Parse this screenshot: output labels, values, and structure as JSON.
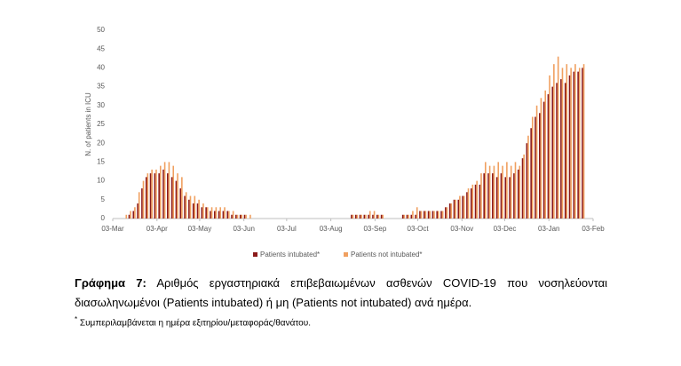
{
  "chart_data": {
    "type": "bar",
    "y_label": "N. of patients in ICU",
    "x": [
      0,
      3,
      6,
      9,
      12,
      15,
      18,
      21,
      24,
      27,
      30,
      33,
      36,
      39,
      42,
      45,
      48,
      51,
      54,
      57,
      60,
      63,
      66,
      69,
      72,
      75,
      78,
      81,
      84,
      87,
      90,
      93,
      96,
      99,
      102,
      105,
      108,
      111,
      114,
      117,
      120,
      123,
      126,
      129,
      132,
      135,
      138,
      141,
      144,
      147,
      150,
      153,
      156,
      159,
      162,
      165,
      168,
      171,
      174,
      177,
      180,
      183,
      186,
      189,
      192,
      195,
      198,
      201,
      204,
      207,
      210,
      213,
      216,
      219,
      222,
      225,
      228,
      231,
      234,
      237,
      240,
      243,
      246,
      249,
      252,
      255,
      258,
      261,
      264,
      267,
      270,
      273,
      276,
      279,
      282,
      285,
      288,
      291,
      294,
      297,
      300,
      303,
      306,
      309,
      312,
      315,
      318,
      321,
      324,
      327,
      330
    ],
    "series": [
      {
        "name": "Patients intubated*",
        "color": "#8b1a1a",
        "values": [
          0,
          0,
          0,
          0,
          1,
          2,
          4,
          8,
          11,
          12,
          12,
          12,
          13,
          12,
          11,
          10,
          8,
          6,
          5,
          4,
          4,
          3,
          3,
          2,
          2,
          2,
          2,
          2,
          1,
          1,
          1,
          1,
          0,
          0,
          0,
          0,
          0,
          0,
          0,
          0,
          0,
          0,
          0,
          0,
          0,
          0,
          0,
          0,
          0,
          0,
          0,
          0,
          0,
          0,
          0,
          0,
          1,
          1,
          1,
          1,
          1,
          1,
          1,
          1,
          0,
          0,
          0,
          0,
          1,
          1,
          1,
          1,
          2,
          2,
          2,
          2,
          2,
          2,
          3,
          4,
          5,
          5,
          6,
          7,
          8,
          9,
          9,
          12,
          12,
          12,
          11,
          12,
          11,
          11,
          12,
          13,
          16,
          20,
          24,
          27,
          28,
          31,
          33,
          35,
          36,
          37,
          36,
          38,
          39,
          39,
          40
        ]
      },
      {
        "name": "Patients not intubated*",
        "color": "#f0a060",
        "values": [
          0,
          0,
          0,
          1,
          2,
          3,
          7,
          10,
          12,
          13,
          13,
          14,
          15,
          15,
          14,
          12,
          11,
          7,
          6,
          6,
          5,
          4,
          3,
          3,
          3,
          3,
          3,
          2,
          2,
          1,
          1,
          1,
          1,
          0,
          0,
          0,
          0,
          0,
          0,
          0,
          0,
          0,
          0,
          0,
          0,
          0,
          0,
          0,
          0,
          0,
          0,
          0,
          0,
          0,
          0,
          0,
          1,
          1,
          1,
          1,
          2,
          2,
          1,
          1,
          0,
          0,
          0,
          0,
          1,
          1,
          2,
          3,
          2,
          2,
          2,
          2,
          2,
          2,
          3,
          4,
          5,
          6,
          6,
          8,
          9,
          10,
          12,
          15,
          14,
          14,
          15,
          14,
          15,
          14,
          15,
          14,
          17,
          22,
          27,
          30,
          32,
          34,
          38,
          41,
          43,
          40,
          41,
          40,
          41,
          40,
          41
        ]
      }
    ],
    "xlim": [
      0,
      337
    ],
    "xticks": [
      {
        "value": 0,
        "label": "03-Mar"
      },
      {
        "value": 31,
        "label": "03-Apr"
      },
      {
        "value": 61,
        "label": "03-May"
      },
      {
        "value": 92,
        "label": "03-Jun"
      },
      {
        "value": 122,
        "label": "03-Jul"
      },
      {
        "value": 153,
        "label": "03-Aug"
      },
      {
        "value": 184,
        "label": "03-Sep"
      },
      {
        "value": 214,
        "label": "03-Oct"
      },
      {
        "value": 245,
        "label": "03-Nov"
      },
      {
        "value": 275,
        "label": "03-Dec"
      },
      {
        "value": 306,
        "label": "03-Jan"
      },
      {
        "value": 337,
        "label": "03-Feb"
      }
    ],
    "ylim": [
      0,
      50
    ],
    "yticks": [
      0,
      5,
      10,
      15,
      20,
      25,
      30,
      35,
      40,
      45,
      50
    ],
    "grid": false,
    "legend": "bottom"
  },
  "caption": {
    "label": "Γράφημα 7:",
    "text": "Αριθμός εργαστηριακά επιβεβαιωμένων ασθενών COVID-19 που νοσηλεύονται διασωληνωμένοι (Patients intubated) ή μη (Patients not intubated) ανά ημέρα."
  },
  "footnote": {
    "mark": "*",
    "text": "Συμπεριλαμβάνεται η ημέρα εξιτηρίου/μεταφοράς/θανάτου."
  }
}
